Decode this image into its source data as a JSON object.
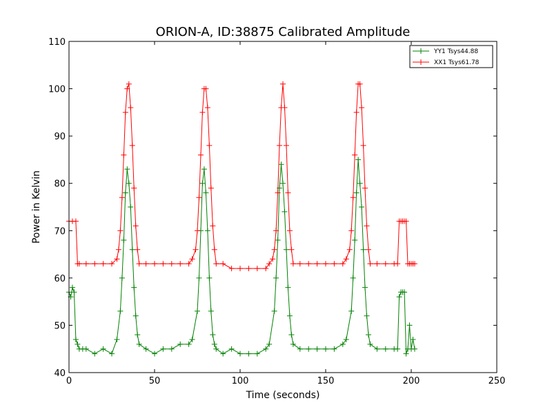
{
  "chart_data": {
    "type": "line",
    "title": "ORION-A, ID:38875 Calibrated Amplitude",
    "xlabel": "Time (seconds)",
    "ylabel": "Power in Kelvin",
    "xlim": [
      0,
      250
    ],
    "ylim": [
      40,
      110
    ],
    "xticks": [
      "0",
      "50",
      "100",
      "150",
      "200",
      "250"
    ],
    "yticks": [
      "40",
      "50",
      "60",
      "70",
      "80",
      "90",
      "100",
      "110"
    ],
    "grid": false,
    "legend_position": "top-right",
    "marker": "plus",
    "series": [
      {
        "name": "YY1 Tsys44.88",
        "color": "#008000",
        "x": [
          0,
          1,
          2,
          3,
          4,
          5,
          6,
          8,
          10,
          15,
          20,
          25,
          28,
          30,
          31,
          32,
          33,
          34,
          35,
          36,
          37,
          38,
          39,
          40,
          41,
          45,
          50,
          55,
          60,
          65,
          70,
          72,
          75,
          76,
          77,
          78,
          79,
          80,
          81,
          82,
          83,
          84,
          85,
          86,
          90,
          95,
          100,
          105,
          110,
          115,
          117,
          120,
          121,
          122,
          123,
          124,
          125,
          126,
          127,
          128,
          129,
          130,
          131,
          135,
          140,
          145,
          150,
          155,
          160,
          162,
          165,
          166,
          167,
          168,
          169,
          170,
          171,
          172,
          173,
          174,
          175,
          176,
          180,
          185,
          190,
          192,
          193,
          194,
          195,
          196,
          197,
          198,
          199,
          200,
          201,
          202
        ],
        "y": [
          57,
          56,
          58,
          57,
          47,
          46,
          45,
          45,
          45,
          44,
          45,
          44,
          47,
          53,
          60,
          68,
          78,
          83,
          80,
          75,
          66,
          58,
          52,
          48,
          46,
          45,
          44,
          45,
          45,
          46,
          46,
          47,
          53,
          60,
          70,
          80,
          83,
          78,
          70,
          60,
          53,
          48,
          46,
          45,
          44,
          45,
          44,
          44,
          44,
          45,
          46,
          53,
          60,
          68,
          79,
          84,
          80,
          74,
          66,
          58,
          52,
          48,
          46,
          45,
          45,
          45,
          45,
          45,
          46,
          47,
          53,
          60,
          68,
          78,
          85,
          80,
          75,
          66,
          58,
          52,
          48,
          46,
          45,
          45,
          45,
          45,
          56,
          57,
          57,
          57,
          44,
          45,
          50,
          45,
          47,
          45
        ]
      },
      {
        "name": "XX1 Tsys61.78",
        "color": "#ff0000",
        "x": [
          0,
          2,
          4,
          5,
          6,
          10,
          15,
          20,
          25,
          28,
          29,
          30,
          31,
          32,
          33,
          34,
          35,
          36,
          37,
          38,
          39,
          40,
          41,
          45,
          50,
          55,
          60,
          65,
          70,
          72,
          74,
          75,
          76,
          77,
          78,
          79,
          80,
          81,
          82,
          83,
          84,
          85,
          86,
          90,
          95,
          100,
          105,
          110,
          115,
          117,
          119,
          120,
          121,
          122,
          123,
          124,
          125,
          126,
          127,
          128,
          129,
          130,
          131,
          135,
          140,
          145,
          150,
          155,
          160,
          162,
          164,
          165,
          166,
          167,
          168,
          169,
          170,
          171,
          172,
          173,
          174,
          175,
          176,
          180,
          185,
          190,
          192,
          193,
          194,
          195,
          196,
          197,
          198,
          199,
          200,
          201,
          202
        ],
        "y": [
          72,
          72,
          72,
          63,
          63,
          63,
          63,
          63,
          63,
          64,
          66,
          70,
          77,
          86,
          95,
          100,
          101,
          96,
          88,
          79,
          71,
          66,
          63,
          63,
          63,
          63,
          63,
          63,
          63,
          64,
          66,
          70,
          77,
          86,
          95,
          100,
          100,
          96,
          88,
          79,
          71,
          66,
          63,
          63,
          62,
          62,
          62,
          62,
          62,
          63,
          64,
          66,
          70,
          78,
          88,
          96,
          101,
          96,
          88,
          78,
          70,
          66,
          63,
          63,
          63,
          63,
          63,
          63,
          63,
          64,
          66,
          70,
          77,
          86,
          95,
          101,
          101,
          96,
          88,
          79,
          71,
          66,
          63,
          63,
          63,
          63,
          63,
          72,
          72,
          72,
          72,
          72,
          63,
          63,
          63,
          63,
          63
        ]
      }
    ]
  }
}
